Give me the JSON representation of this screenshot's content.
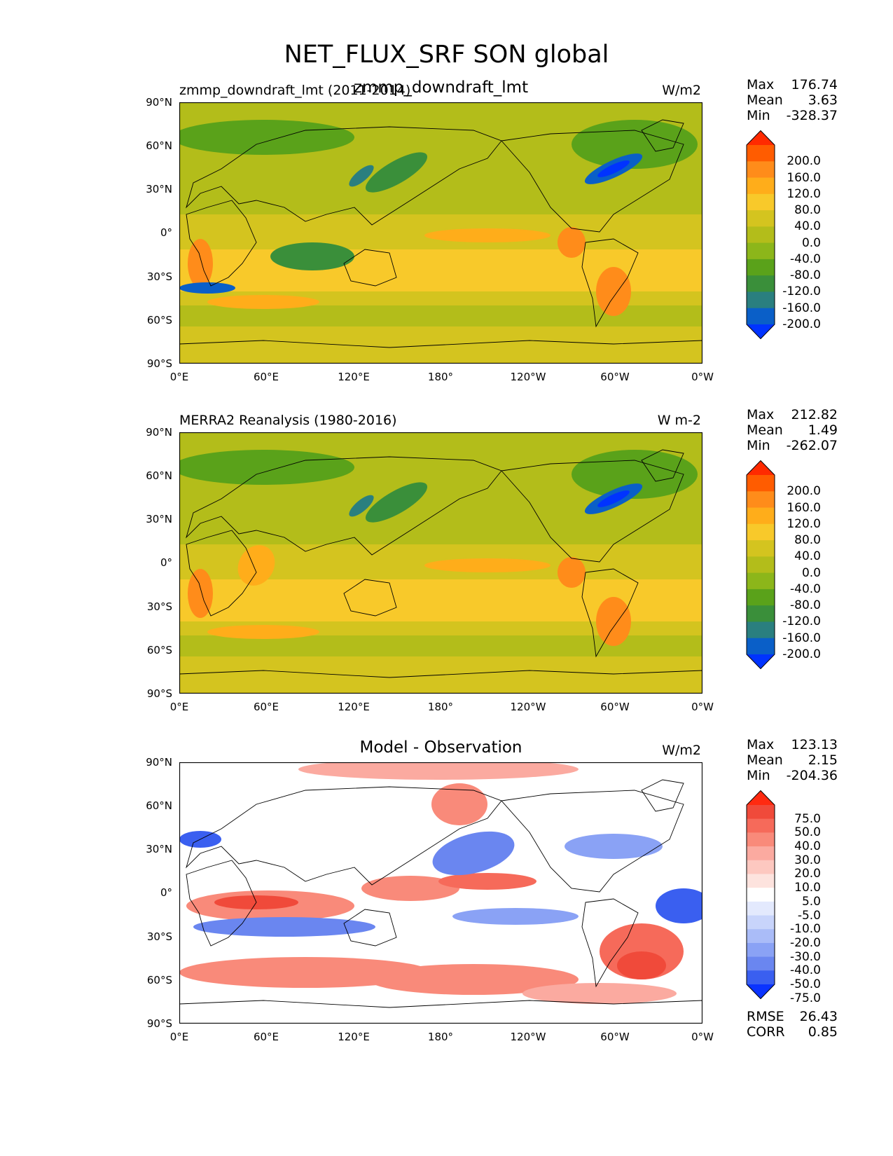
{
  "suptitle": "NET_FLUX_SRF SON global",
  "chart_data": [
    {
      "type": "heatmap",
      "title_left": "zmmp_downdraft_lmt (2011-2014)",
      "title_center": "zmmp_downdraft_lmt",
      "units": "W/m2",
      "stats": {
        "max_label": "Max",
        "max": "176.74",
        "mean_label": "Mean",
        "mean": "3.63",
        "min_label": "Min",
        "min": "-328.37"
      },
      "y_ticks": [
        "90°N",
        "60°N",
        "30°N",
        "0°",
        "30°S",
        "60°S",
        "90°S"
      ],
      "x_ticks": [
        "0°E",
        "60°E",
        "120°E",
        "180°",
        "120°W",
        "60°W",
        "0°W"
      ],
      "colorbar_levels": [
        "200.0",
        "160.0",
        "120.0",
        "80.0",
        "40.0",
        "0.0",
        "-40.0",
        "-80.0",
        "-120.0",
        "-160.0",
        "-200.0"
      ],
      "colorbar_colors": [
        "#ff2a00",
        "#ff5c00",
        "#ff8c1a",
        "#ffad1a",
        "#f8c92a",
        "#d4c41f",
        "#b3bd1a",
        "#8cb61a",
        "#5aa21a",
        "#3a8f3a",
        "#2a7f7f",
        "#0a5fc8",
        "#0033ff"
      ]
    },
    {
      "type": "heatmap",
      "title_left": "MERRA2 Reanalysis (1980-2016)",
      "title_center": "",
      "units": "W m-2",
      "stats": {
        "max_label": "Max",
        "max": "212.82",
        "mean_label": "Mean",
        "mean": "1.49",
        "min_label": "Min",
        "min": "-262.07"
      },
      "y_ticks": [
        "90°N",
        "60°N",
        "30°N",
        "0°",
        "30°S",
        "60°S",
        "90°S"
      ],
      "x_ticks": [
        "0°E",
        "60°E",
        "120°E",
        "180°",
        "120°W",
        "60°W",
        "0°W"
      ],
      "colorbar_levels": [
        "200.0",
        "160.0",
        "120.0",
        "80.0",
        "40.0",
        "0.0",
        "-40.0",
        "-80.0",
        "-120.0",
        "-160.0",
        "-200.0"
      ],
      "colorbar_colors": [
        "#ff2a00",
        "#ff5c00",
        "#ff8c1a",
        "#ffad1a",
        "#f8c92a",
        "#d4c41f",
        "#b3bd1a",
        "#8cb61a",
        "#5aa21a",
        "#3a8f3a",
        "#2a7f7f",
        "#0a5fc8",
        "#0033ff"
      ]
    },
    {
      "type": "heatmap",
      "title_left": "",
      "title_center": "Model - Observation",
      "units": "W/m2",
      "stats": {
        "max_label": "Max",
        "max": "123.13",
        "mean_label": "Mean",
        "mean": "2.15",
        "min_label": "Min",
        "min": "-204.36"
      },
      "y_ticks": [
        "90°N",
        "60°N",
        "30°N",
        "0°",
        "30°S",
        "60°S",
        "90°S"
      ],
      "x_ticks": [
        "0°E",
        "60°E",
        "120°E",
        "180°",
        "120°W",
        "60°W",
        "0°W"
      ],
      "colorbar_levels": [
        "75.0",
        "50.0",
        "40.0",
        "30.0",
        "20.0",
        "10.0",
        "5.0",
        "-5.0",
        "-10.0",
        "-20.0",
        "-30.0",
        "-40.0",
        "-50.0",
        "-75.0"
      ],
      "colorbar_colors": [
        "#ff2a10",
        "#f04a3a",
        "#f66a5a",
        "#f98a7a",
        "#fbaaa0",
        "#fdc8c0",
        "#fde3de",
        "#ffffff",
        "#e3e9fd",
        "#c8d4fb",
        "#aabcf8",
        "#8aa2f5",
        "#6a86f0",
        "#3a5ff0",
        "#0a33ff"
      ],
      "rmse_label": "RMSE",
      "rmse": "26.43",
      "corr_label": "CORR",
      "corr": "0.85"
    }
  ]
}
